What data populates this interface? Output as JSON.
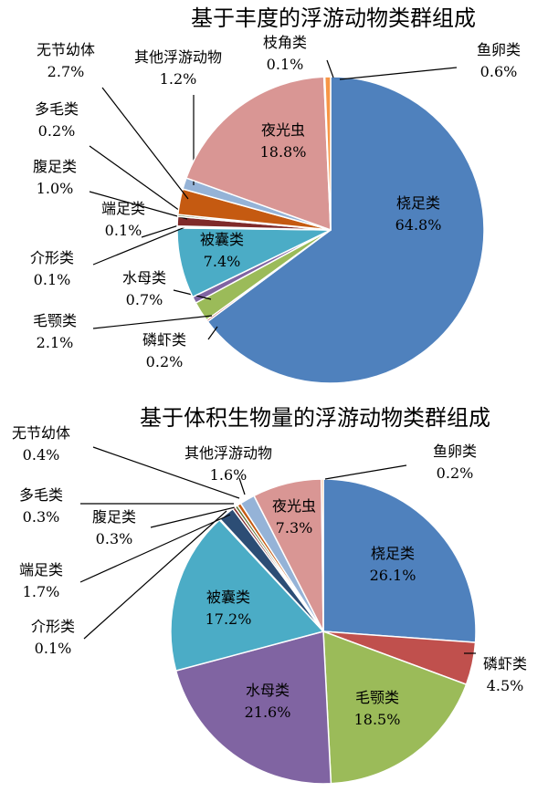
{
  "chart_data": [
    {
      "type": "pie",
      "title": "基于丰度的浮游动物类群组成",
      "slices": [
        {
          "label": "桡足类",
          "value_text": "64.8%",
          "value": 64.8,
          "color": "#4f81bd"
        },
        {
          "label": "磷虾类",
          "value_text": "0.2%",
          "value": 0.2,
          "color": "#c0504d"
        },
        {
          "label": "毛颚类",
          "value_text": "2.1%",
          "value": 2.1,
          "color": "#9bbb59"
        },
        {
          "label": "水母类",
          "value_text": "0.7%",
          "value": 0.7,
          "color": "#8064a2"
        },
        {
          "label": "被囊类",
          "value_text": "7.4%",
          "value": 7.4,
          "color": "#4bacc6"
        },
        {
          "label": "介形类",
          "value_text": "0.1%",
          "value": 0.1,
          "color": "#1f497d"
        },
        {
          "label": "端足类",
          "value_text": "0.1%",
          "value": 0.1,
          "color": "#2c4d75"
        },
        {
          "label": "腹足类",
          "value_text": "1.0%",
          "value": 1.0,
          "color": "#7f2a2a"
        },
        {
          "label": "多毛类",
          "value_text": "0.2%",
          "value": 0.2,
          "color": "#5f7530"
        },
        {
          "label": "无节幼体",
          "value_text": "2.7%",
          "value": 2.7,
          "color": "#c55a11"
        },
        {
          "label": "其他浮游动物",
          "value_text": "1.2%",
          "value": 1.2,
          "color": "#95b3d7"
        },
        {
          "label": "夜光虫",
          "value_text": "18.8%",
          "value": 18.8,
          "color": "#d99694"
        },
        {
          "label": "枝角类",
          "value_text": "0.1%",
          "value": 0.1,
          "color": "#c3d69b"
        },
        {
          "label": "鱼卵类",
          "value_text": "0.6%",
          "value": 0.6,
          "color": "#f79646"
        }
      ]
    },
    {
      "type": "pie",
      "title": "基于体积生物量的浮游动物类群组成",
      "slices": [
        {
          "label": "桡足类",
          "value_text": "26.1%",
          "value": 26.1,
          "color": "#4f81bd"
        },
        {
          "label": "磷虾类",
          "value_text": "4.5%",
          "value": 4.5,
          "color": "#c0504d"
        },
        {
          "label": "毛颚类",
          "value_text": "18.5%",
          "value": 18.5,
          "color": "#9bbb59"
        },
        {
          "label": "水母类",
          "value_text": "21.6%",
          "value": 21.6,
          "color": "#8064a2"
        },
        {
          "label": "被囊类",
          "value_text": "17.2%",
          "value": 17.2,
          "color": "#4bacc6"
        },
        {
          "label": "介形类",
          "value_text": "0.1%",
          "value": 0.1,
          "color": "#1f497d"
        },
        {
          "label": "端足类",
          "value_text": "1.7%",
          "value": 1.7,
          "color": "#2c4d75"
        },
        {
          "label": "腹足类",
          "value_text": "0.3%",
          "value": 0.3,
          "color": "#7f2a2a"
        },
        {
          "label": "多毛类",
          "value_text": "0.3%",
          "value": 0.3,
          "color": "#5f7530"
        },
        {
          "label": "无节幼体",
          "value_text": "0.4%",
          "value": 0.4,
          "color": "#c55a11"
        },
        {
          "label": "其他浮游动物",
          "value_text": "1.6%",
          "value": 1.6,
          "color": "#95b3d7"
        },
        {
          "label": "夜光虫",
          "value_text": "7.3%",
          "value": 7.3,
          "color": "#d99694"
        },
        {
          "label": "鱼卵类",
          "value_text": "0.2%",
          "value": 0.2,
          "color": "#f79646"
        }
      ]
    }
  ]
}
